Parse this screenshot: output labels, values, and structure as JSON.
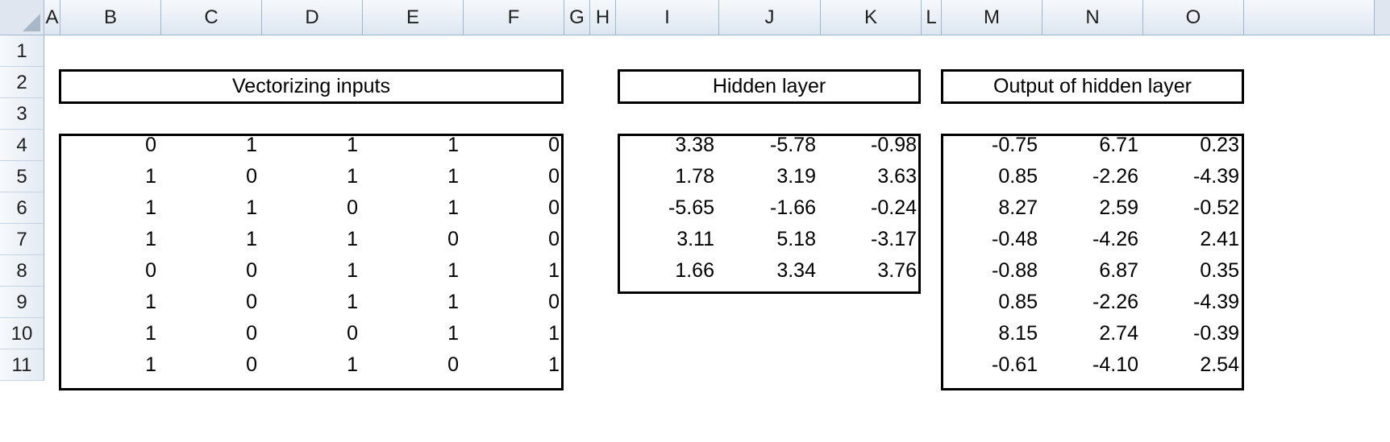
{
  "columns": [
    "A",
    "B",
    "C",
    "D",
    "E",
    "F",
    "G",
    "H",
    "I",
    "J",
    "K",
    "L",
    "M",
    "N",
    "O"
  ],
  "rows": [
    "1",
    "2",
    "3",
    "4",
    "5",
    "6",
    "7",
    "8",
    "9",
    "10",
    "11"
  ],
  "tables": [
    {
      "title": "Vectorizing inputs",
      "values": [
        [
          "0",
          "1",
          "1",
          "1",
          "0"
        ],
        [
          "1",
          "0",
          "1",
          "1",
          "0"
        ],
        [
          "1",
          "1",
          "0",
          "1",
          "0"
        ],
        [
          "1",
          "1",
          "1",
          "0",
          "0"
        ],
        [
          "0",
          "0",
          "1",
          "1",
          "1"
        ],
        [
          "1",
          "0",
          "1",
          "1",
          "0"
        ],
        [
          "1",
          "0",
          "0",
          "1",
          "1"
        ],
        [
          "1",
          "0",
          "1",
          "0",
          "1"
        ]
      ]
    },
    {
      "title": "Hidden layer",
      "values": [
        [
          "3.38",
          "-5.78",
          "-0.98"
        ],
        [
          "1.78",
          "3.19",
          "3.63"
        ],
        [
          "-5.65",
          "-1.66",
          "-0.24"
        ],
        [
          "3.11",
          "5.18",
          "-3.17"
        ],
        [
          "1.66",
          "3.34",
          "3.76"
        ]
      ]
    },
    {
      "title": "Output of hidden layer",
      "values": [
        [
          "-0.75",
          "6.71",
          "0.23"
        ],
        [
          "0.85",
          "-2.26",
          "-4.39"
        ],
        [
          "8.27",
          "2.59",
          "-0.52"
        ],
        [
          "-0.48",
          "-4.26",
          "2.41"
        ],
        [
          "-0.88",
          "6.87",
          "0.35"
        ],
        [
          "0.85",
          "-2.26",
          "-4.39"
        ],
        [
          "8.15",
          "2.74",
          "-0.39"
        ],
        [
          "-0.61",
          "-4.10",
          "2.54"
        ]
      ]
    }
  ]
}
